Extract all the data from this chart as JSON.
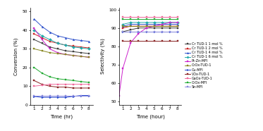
{
  "time_conv": [
    1,
    2,
    3,
    4,
    5,
    6,
    7,
    8
  ],
  "time_sel": [
    0.5,
    1,
    2,
    3,
    4,
    5,
    6,
    7,
    8
  ],
  "conversion": {
    "Cr TUD-1 1 mol %": [
      35,
      33,
      31,
      30,
      29,
      28.5,
      28,
      27.5
    ],
    "Cr TUD-1 2 mol %": [
      38,
      36,
      34,
      33,
      32,
      31.5,
      31,
      30.5
    ],
    "Cr TUD-1 4 mol %": [
      46,
      42,
      39,
      37,
      36,
      35,
      34.5,
      34
    ],
    "Cr TUD-1 6 mol %": [
      40,
      37,
      35,
      33,
      32,
      31,
      30.5,
      30
    ],
    "Pt-Zn-MFI": [
      41,
      35,
      30,
      28,
      27,
      26.5,
      26,
      25.5
    ],
    "CrOx-TUD-1": [
      30,
      29,
      28,
      27.5,
      27,
      26.5,
      26,
      25.5
    ],
    "Cu-MFI": [
      4.5,
      4,
      4,
      4,
      4,
      4.5,
      5,
      5
    ],
    "VOx-TUD-1": [
      13,
      11,
      10,
      9.5,
      9.5,
      9,
      9,
      9
    ],
    "GaOx-TUD-1": [
      10,
      10.5,
      11,
      11,
      11,
      11,
      11,
      11
    ],
    "CrOx-MFI": [
      20,
      17,
      15,
      14,
      13.5,
      13,
      12.5,
      12
    ],
    "Sn-MFI": [
      5,
      5,
      5,
      5,
      5,
      5,
      5,
      5
    ]
  },
  "selectivity": {
    "Cr TUD-1 1 mol %": [
      null,
      88,
      89,
      90,
      90,
      90,
      90,
      90,
      90
    ],
    "Cr TUD-1 2 mol %": [
      null,
      90,
      91,
      91,
      91,
      91,
      91,
      91,
      91
    ],
    "Cr TUD-1 4 mol %": [
      null,
      91,
      92,
      92,
      92,
      92,
      92,
      92,
      92
    ],
    "Cr TUD-1 6 mol %": [
      null,
      92,
      93,
      93,
      93,
      93,
      93,
      93,
      93
    ],
    "Pt-Zn-MFI": [
      53,
      68,
      82,
      87,
      90,
      91,
      92,
      93,
      93
    ],
    "CrOx-TUD-1": [
      null,
      91,
      91,
      91,
      91,
      91,
      91,
      91,
      91
    ],
    "Cu-MFI": [
      null,
      88,
      88,
      88,
      88,
      88,
      88,
      88,
      88
    ],
    "VOx-TUD-1": [
      null,
      83,
      83,
      83,
      83,
      83,
      83,
      83,
      83
    ],
    "GaOx-TUD-1": [
      null,
      96,
      96,
      96,
      96,
      96,
      96,
      96,
      96
    ],
    "CrOx-MFI": [
      null,
      95,
      95,
      95,
      95,
      95,
      95,
      95,
      95
    ],
    "Sn-MFI": [
      null,
      88,
      88,
      88,
      88,
      88,
      88,
      88,
      88
    ]
  },
  "colors": {
    "Cr TUD-1 1 mol %": "#3d3d3d",
    "Cr TUD-1 2 mol %": "#cc2222",
    "Cr TUD-1 4 mol %": "#3355cc",
    "Cr TUD-1 6 mol %": "#22aaaa",
    "Pt-Zn-MFI": "#cc22cc",
    "CrOx-TUD-1": "#888822",
    "Cu-MFI": "#2244cc",
    "VOx-TUD-1": "#882222",
    "GaOx-TUD-1": "#ee6699",
    "CrOx-MFI": "#22aa33",
    "Sn-MFI": "#8888dd"
  },
  "markers": {
    "Cr TUD-1 1 mol %": "s",
    "Cr TUD-1 2 mol %": "s",
    "Cr TUD-1 4 mol %": "^",
    "Cr TUD-1 6 mol %": "D",
    "Pt-Zn-MFI": "s",
    "CrOx-TUD-1": "s",
    "Cu-MFI": ">",
    "VOx-TUD-1": "s",
    "GaOx-TUD-1": "s",
    "CrOx-MFI": "s",
    "Sn-MFI": "s"
  },
  "conv_ylim": [
    0,
    52
  ],
  "sel_ylim": [
    48,
    101
  ],
  "conv_yticks": [
    0,
    10,
    20,
    30,
    40,
    50
  ],
  "sel_yticks": [
    50,
    60,
    70,
    80,
    90,
    100
  ],
  "conv_xticks": [
    1,
    2,
    3,
    4,
    5,
    6,
    7,
    8
  ],
  "sel_xticks": [
    1,
    2,
    3,
    4,
    5,
    6,
    7,
    8
  ],
  "figsize": [
    3.73,
    1.86
  ],
  "dpi": 100
}
